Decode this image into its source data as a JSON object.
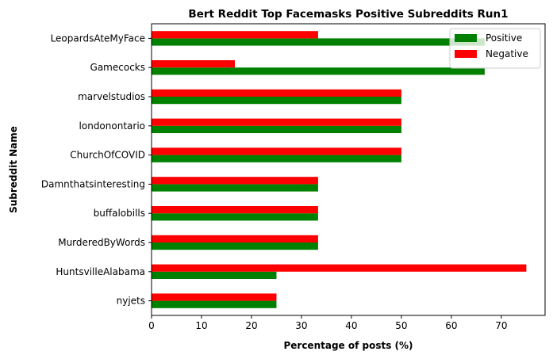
{
  "chart_data": {
    "type": "bar",
    "orientation": "horizontal",
    "title": "Bert Reddit Top Facemasks Positive Subreddits Run1",
    "xlabel": "Percentage of posts (%)",
    "ylabel": "Subreddit Name",
    "xlim": [
      0,
      78.75
    ],
    "xticks": [
      0,
      10,
      20,
      30,
      40,
      50,
      60,
      70
    ],
    "categories": [
      "nyjets",
      "HuntsvilleAlabama",
      "MurderedByWords",
      "buffalobills",
      "Damnthatsinteresting",
      "ChurchOfCOVID",
      "londonontario",
      "marvelstudios",
      "Gamecocks",
      "LeopardsAteMyFace"
    ],
    "series": [
      {
        "name": "Positive",
        "color": "#008000",
        "values": [
          25.0,
          25.0,
          33.33,
          33.33,
          33.33,
          50.0,
          50.0,
          50.0,
          66.67,
          66.67
        ]
      },
      {
        "name": "Negative",
        "color": "#ff0000",
        "values": [
          25.0,
          75.0,
          33.33,
          33.33,
          33.33,
          50.0,
          50.0,
          50.0,
          16.67,
          33.33
        ]
      }
    ],
    "grid": false,
    "legend_position": "top-right"
  }
}
